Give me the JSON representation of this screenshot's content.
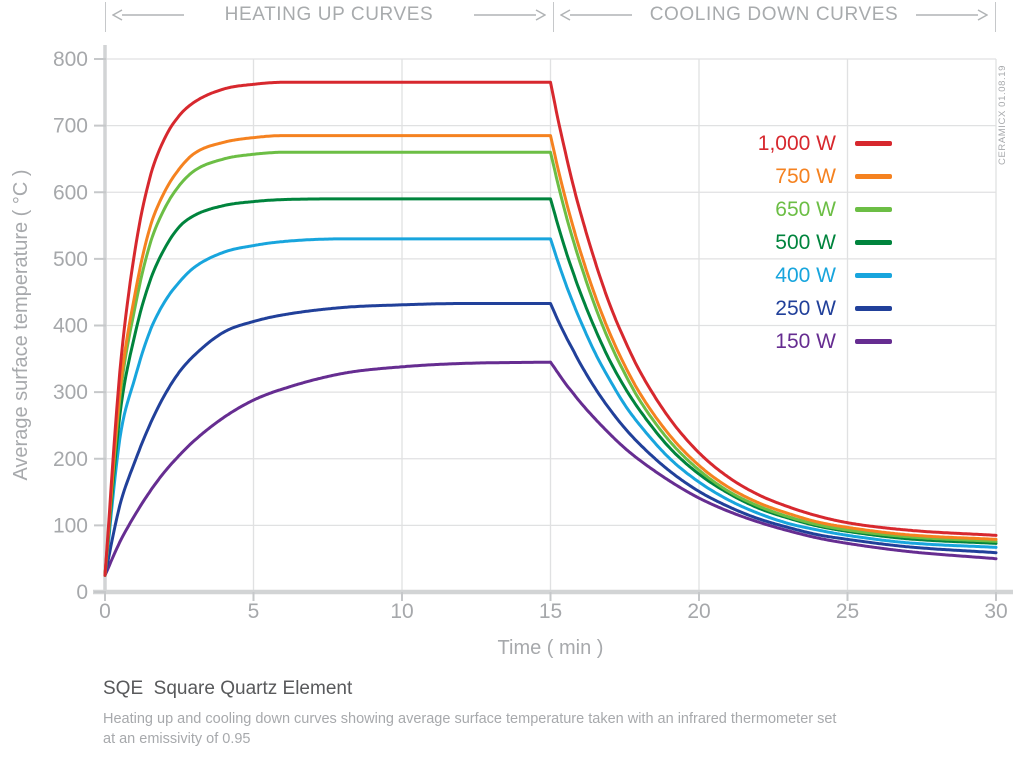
{
  "header": {
    "left_label": "HEATING UP CURVES",
    "right_label": "COOLING DOWN CURVES"
  },
  "watermark": "CERAMICX 01.08.19",
  "caption": {
    "title": "SQE  Square Quartz Element",
    "description_lines": [
      "Heating up and cooling down curves showing average surface temperature taken with an infrared thermometer set",
      "at an emissivity of 0.95"
    ]
  },
  "chart_data": {
    "type": "line",
    "title": "",
    "xlabel": "Time ( min )",
    "ylabel": "Average surface temperature ( °C )",
    "xlim": [
      0,
      30
    ],
    "ylim": [
      0,
      800
    ],
    "xticks": [
      0,
      5,
      10,
      15,
      20,
      25,
      30
    ],
    "yticks": [
      0,
      100,
      200,
      300,
      400,
      500,
      600,
      700,
      800
    ],
    "grid": true,
    "legend_position": "upper right",
    "phase_split_min": 15,
    "x": [
      0,
      0.5,
      1,
      1.5,
      2,
      2.5,
      3,
      4,
      5,
      6,
      8,
      10,
      12,
      15,
      15.25,
      15.5,
      15.75,
      16,
      16.5,
      17,
      17.5,
      18,
      19,
      20,
      21,
      22,
      23,
      24,
      25,
      27,
      30
    ],
    "series": [
      {
        "name": "1,000 W",
        "color": "#d7282e",
        "values": [
          25,
          330,
          510,
          620,
          680,
          715,
          735,
          755,
          762,
          765,
          765,
          765,
          765,
          765,
          710,
          660,
          613,
          571,
          496,
          431,
          378,
          332,
          261,
          209,
          172,
          146,
          128,
          114,
          104,
          93,
          85
        ]
      },
      {
        "name": "750 W",
        "color": "#f58220",
        "values": [
          25,
          300,
          445,
          545,
          600,
          635,
          658,
          675,
          682,
          685,
          685,
          685,
          685,
          685,
          636,
          591,
          550,
          512,
          445,
          388,
          340,
          299,
          236,
          190,
          157,
          134,
          118,
          105,
          97,
          86,
          79
        ]
      },
      {
        "name": "650 W",
        "color": "#6cbe45",
        "values": [
          25,
          290,
          425,
          520,
          575,
          610,
          632,
          650,
          657,
          660,
          660,
          660,
          660,
          660,
          613,
          569,
          530,
          494,
          429,
          374,
          328,
          288,
          227,
          183,
          151,
          129,
          113,
          101,
          93,
          83,
          76
        ]
      },
      {
        "name": "500 W",
        "color": "#00843d",
        "values": [
          25,
          265,
          385,
          465,
          515,
          548,
          565,
          580,
          586,
          589,
          590,
          590,
          590,
          590,
          551,
          514,
          481,
          450,
          395,
          347,
          307,
          273,
          217,
          177,
          148,
          126,
          111,
          99,
          91,
          80,
          73
        ]
      },
      {
        "name": "400 W",
        "color": "#18a5dd",
        "values": [
          25,
          230,
          320,
          390,
          435,
          465,
          487,
          510,
          520,
          526,
          530,
          530,
          530,
          530,
          496,
          464,
          435,
          408,
          359,
          318,
          281,
          251,
          201,
          165,
          138,
          118,
          103,
          93,
          85,
          74,
          67
        ]
      },
      {
        "name": "250 W",
        "color": "#21409a",
        "values": [
          25,
          130,
          195,
          250,
          295,
          330,
          355,
          390,
          406,
          416,
          427,
          431,
          433,
          433,
          408,
          385,
          364,
          343,
          306,
          274,
          246,
          222,
          182,
          151,
          128,
          110,
          97,
          86,
          79,
          68,
          59
        ]
      },
      {
        "name": "150 W",
        "color": "#662d91",
        "values": [
          25,
          75,
          115,
          150,
          180,
          205,
          227,
          262,
          288,
          305,
          328,
          338,
          343,
          345,
          329,
          313,
          299,
          285,
          260,
          237,
          216,
          198,
          167,
          141,
          121,
          105,
          92,
          81,
          73,
          61,
          50
        ]
      }
    ],
    "style": {
      "grid_color": "#e0e1e2",
      "axis_color": "#d2d4d5",
      "tick_color": "#c6c8ca",
      "tick_label_color": "#a6a8ab",
      "header_color": "#a8abad",
      "arrow_color": "#b0b3b5"
    }
  }
}
